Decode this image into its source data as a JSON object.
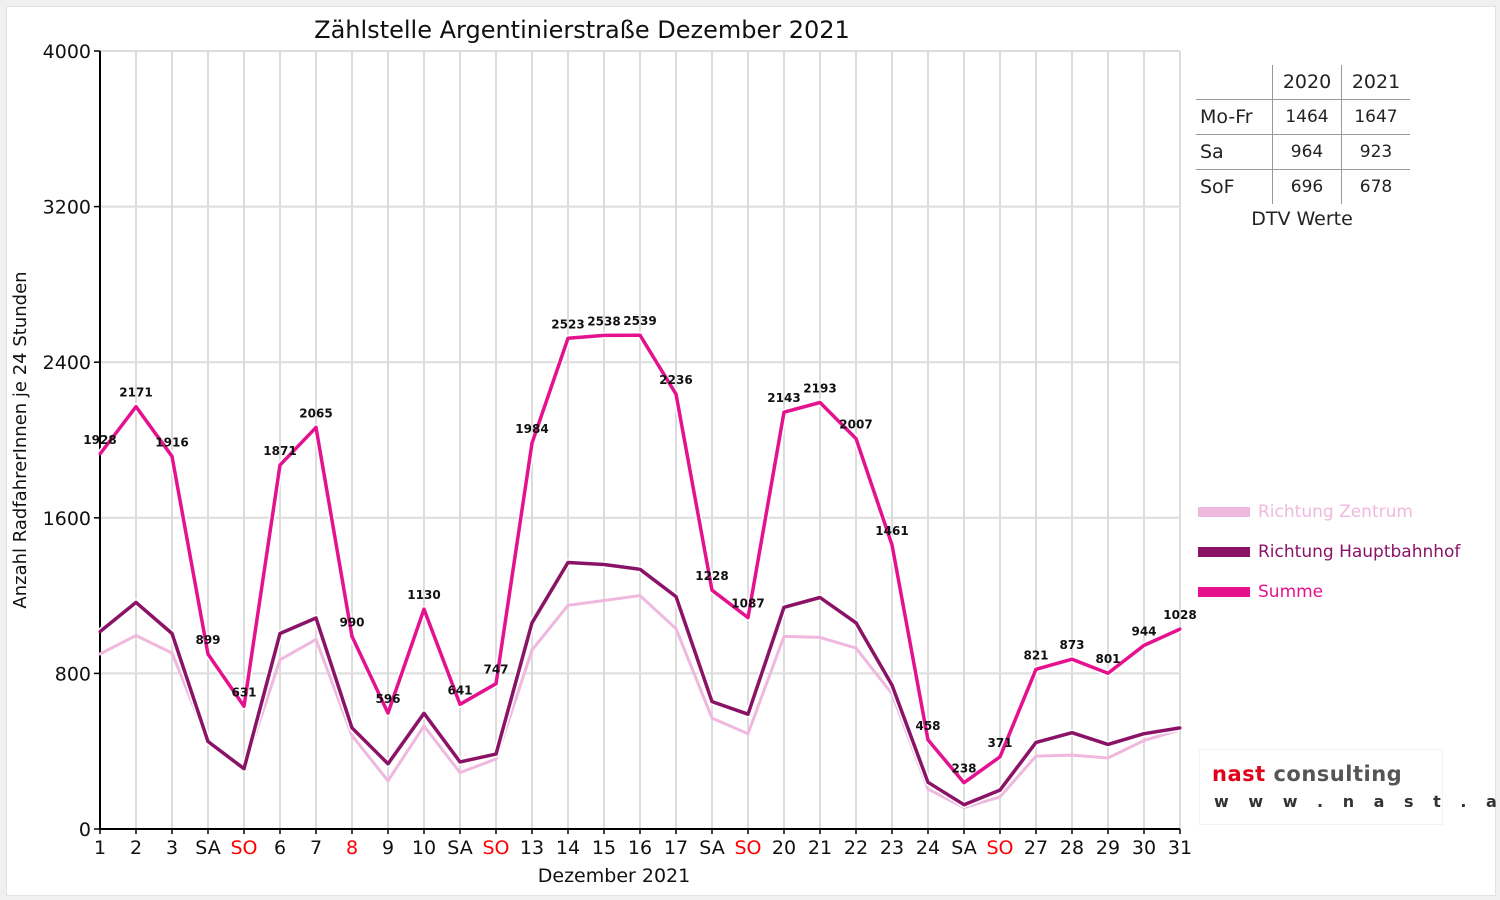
{
  "chart_data": {
    "type": "line",
    "title": "Zählstelle Argentinierstraße Dezember 2021",
    "xlabel": "Dezember 2021",
    "ylabel": "Anzahl RadfahrerInnen je 24 Stunden",
    "ylim": [
      0,
      4000
    ],
    "yticks": [
      "0",
      "800",
      "1600",
      "2400",
      "3200",
      "4000"
    ],
    "categories": [
      "1",
      "2",
      "3",
      "SA",
      "SO",
      "6",
      "7",
      "8",
      "9",
      "10",
      "SA",
      "SO",
      "13",
      "14",
      "15",
      "16",
      "17",
      "SA",
      "SO",
      "20",
      "21",
      "22",
      "23",
      "24",
      "SA",
      "SO",
      "27",
      "28",
      "29",
      "30",
      "31"
    ],
    "highlight_color": "#ff0000",
    "highlight_categories": [
      4,
      7,
      11,
      18,
      25
    ],
    "grid": true,
    "legend_position": "right",
    "series": [
      {
        "name": "Richtung Zentrum",
        "color": "#efb8df",
        "values": [
          900,
          995,
          905,
          448,
          310,
          870,
          975,
          480,
          248,
          530,
          290,
          360,
          920,
          1150,
          1175,
          1200,
          1030,
          570,
          490,
          990,
          985,
          930,
          695,
          205,
          110,
          165,
          375,
          380,
          365,
          455,
          510
        ]
      },
      {
        "name": "Richtung Hauptbahnhof",
        "color": "#8b1367",
        "values": [
          1015,
          1165,
          1005,
          450,
          310,
          1005,
          1085,
          520,
          335,
          595,
          345,
          385,
          1060,
          1370,
          1360,
          1335,
          1195,
          655,
          590,
          1140,
          1190,
          1060,
          740,
          240,
          125,
          200,
          445,
          495,
          435,
          490,
          520
        ]
      },
      {
        "name": "Summe",
        "color": "#e4128f",
        "values": [
          1928,
          2171,
          1916,
          899,
          631,
          1871,
          2065,
          990,
          596,
          1130,
          641,
          747,
          1984,
          2523,
          2538,
          2539,
          2236,
          1228,
          1087,
          2143,
          2193,
          2007,
          1461,
          458,
          238,
          371,
          821,
          873,
          801,
          944,
          1028
        ],
        "labels": [
          "1928",
          "2171",
          "1916",
          "899",
          "631",
          "1871",
          "2065",
          "990",
          "596",
          "1130",
          "641",
          "747",
          "1984",
          "2523",
          "2538",
          "2539",
          "2236",
          "1228",
          "1087",
          "2143",
          "2193",
          "2007",
          "1461",
          "458",
          "238",
          "371",
          "821",
          "873",
          "801",
          "944",
          "1028"
        ]
      }
    ]
  },
  "dtv_table": {
    "headers": [
      "",
      "2020",
      "2021"
    ],
    "rows": [
      {
        "label": "Mo-Fr",
        "v2020": "1464",
        "v2021": "1647"
      },
      {
        "label": "Sa",
        "v2020": "964",
        "v2021": "923"
      },
      {
        "label": "SoF",
        "v2020": "696",
        "v2021": "678"
      }
    ],
    "caption": "DTV Werte"
  },
  "logo": {
    "word1": "nast",
    "word2": "consulting",
    "word1_color": "#e3001b",
    "word2_color": "#555555",
    "url": "w w w . n a s t . a t"
  }
}
